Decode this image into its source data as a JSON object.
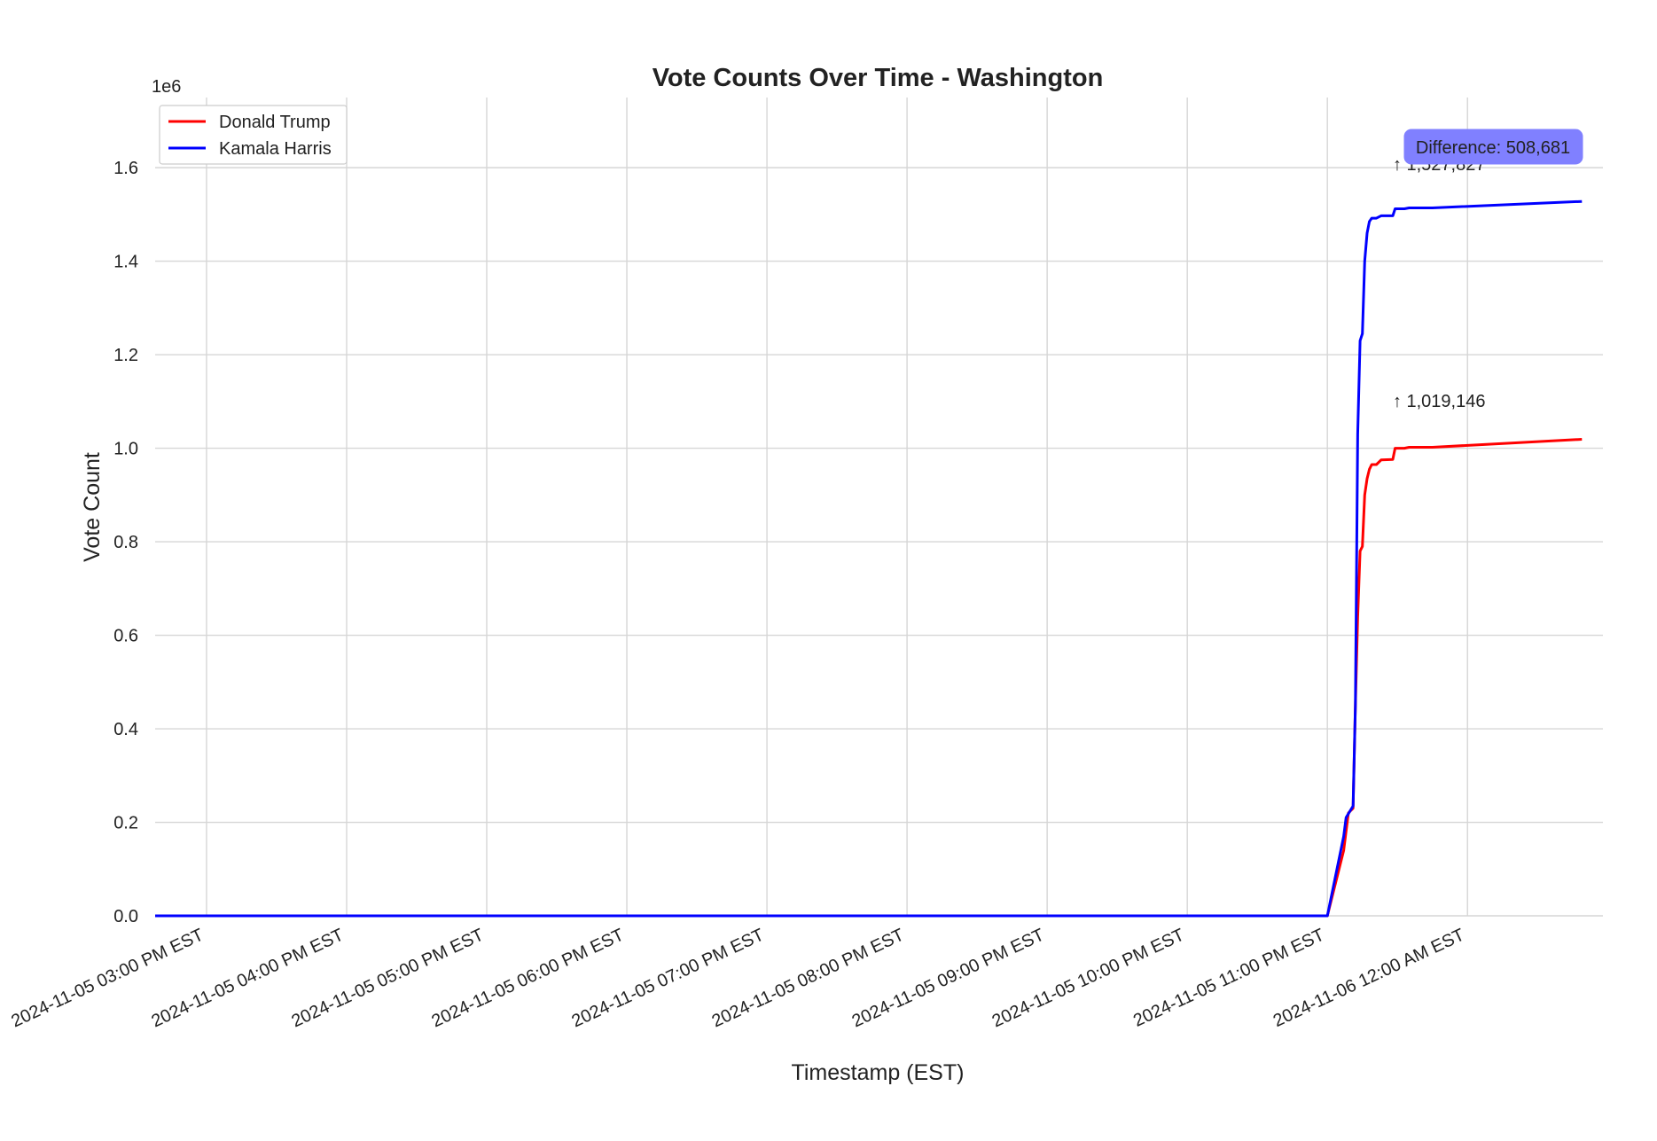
{
  "chart_data": {
    "type": "line",
    "title": "Vote Counts Over Time - Washington",
    "xlabel": "Timestamp (EST)",
    "ylabel": "Vote Count",
    "y_offset_label": "1e6",
    "ylim": [
      0,
      1750000
    ],
    "xlim": [
      "2024-11-05 14:38",
      "2024-11-06 00:58"
    ],
    "grid": true,
    "legend_position": "top-left",
    "x_ticks": [
      {
        "t": "2024-11-05 15:00",
        "label": "2024-11-05 03:00 PM EST"
      },
      {
        "t": "2024-11-05 16:00",
        "label": "2024-11-05 04:00 PM EST"
      },
      {
        "t": "2024-11-05 17:00",
        "label": "2024-11-05 05:00 PM EST"
      },
      {
        "t": "2024-11-05 18:00",
        "label": "2024-11-05 06:00 PM EST"
      },
      {
        "t": "2024-11-05 19:00",
        "label": "2024-11-05 07:00 PM EST"
      },
      {
        "t": "2024-11-05 20:00",
        "label": "2024-11-05 08:00 PM EST"
      },
      {
        "t": "2024-11-05 21:00",
        "label": "2024-11-05 09:00 PM EST"
      },
      {
        "t": "2024-11-05 22:00",
        "label": "2024-11-05 10:00 PM EST"
      },
      {
        "t": "2024-11-05 23:00",
        "label": "2024-11-05 11:00 PM EST"
      },
      {
        "t": "2024-11-06 00:00",
        "label": "2024-11-06 12:00 AM EST"
      }
    ],
    "y_ticks": [
      {
        "v": 0,
        "label": "0.0"
      },
      {
        "v": 200000,
        "label": "0.2"
      },
      {
        "v": 400000,
        "label": "0.4"
      },
      {
        "v": 600000,
        "label": "0.6"
      },
      {
        "v": 800000,
        "label": "0.8"
      },
      {
        "v": 1000000,
        "label": "1.0"
      },
      {
        "v": 1200000,
        "label": "1.2"
      },
      {
        "v": 1400000,
        "label": "1.4"
      },
      {
        "v": 1600000,
        "label": "1.6"
      }
    ],
    "series": [
      {
        "name": "Donald Trump",
        "color": "#ff0000",
        "points": [
          [
            "2024-11-05 14:38",
            0
          ],
          [
            "2024-11-05 23:00",
            0
          ],
          [
            "2024-11-05 23:07",
            140000
          ],
          [
            "2024-11-05 23:09",
            220000
          ],
          [
            "2024-11-05 23:11",
            230000
          ],
          [
            "2024-11-05 23:12",
            450000
          ],
          [
            "2024-11-05 23:13",
            640000
          ],
          [
            "2024-11-05 23:14",
            780000
          ],
          [
            "2024-11-05 23:15",
            790000
          ],
          [
            "2024-11-05 23:16",
            900000
          ],
          [
            "2024-11-05 23:17",
            935000
          ],
          [
            "2024-11-05 23:18",
            955000
          ],
          [
            "2024-11-05 23:19",
            965000
          ],
          [
            "2024-11-05 23:21",
            965000
          ],
          [
            "2024-11-05 23:23",
            975000
          ],
          [
            "2024-11-05 23:28",
            976000
          ],
          [
            "2024-11-05 23:29",
            1000000
          ],
          [
            "2024-11-05 23:33",
            1000000
          ],
          [
            "2024-11-05 23:35",
            1002000
          ],
          [
            "2024-11-05 23:45",
            1002000
          ],
          [
            "2024-11-06 00:49",
            1019146
          ]
        ]
      },
      {
        "name": "Kamala Harris",
        "color": "#0000ff",
        "points": [
          [
            "2024-11-05 14:38",
            0
          ],
          [
            "2024-11-05 23:00",
            0
          ],
          [
            "2024-11-05 23:07",
            170000
          ],
          [
            "2024-11-05 23:08",
            210000
          ],
          [
            "2024-11-05 23:11",
            235000
          ],
          [
            "2024-11-05 23:12",
            450000
          ],
          [
            "2024-11-05 23:13",
            1030000
          ],
          [
            "2024-11-05 23:14",
            1230000
          ],
          [
            "2024-11-05 23:15",
            1245000
          ],
          [
            "2024-11-05 23:16",
            1400000
          ],
          [
            "2024-11-05 23:17",
            1460000
          ],
          [
            "2024-11-05 23:18",
            1485000
          ],
          [
            "2024-11-05 23:19",
            1492000
          ],
          [
            "2024-11-05 23:21",
            1492000
          ],
          [
            "2024-11-05 23:23",
            1497000
          ],
          [
            "2024-11-05 23:28",
            1497000
          ],
          [
            "2024-11-05 23:29",
            1512000
          ],
          [
            "2024-11-05 23:33",
            1512000
          ],
          [
            "2024-11-05 23:35",
            1514000
          ],
          [
            "2024-11-05 23:45",
            1514000
          ],
          [
            "2024-11-06 00:49",
            1527827
          ]
        ]
      }
    ],
    "annotations": [
      {
        "text": "↑ 1,527,827",
        "t": "2024-11-05 23:28",
        "v": 1595000
      },
      {
        "text": "↑ 1,019,146",
        "t": "2024-11-05 23:28",
        "v": 1088000
      }
    ],
    "difference_box": {
      "text": "Difference: 508,681",
      "color": "#8080ff"
    }
  }
}
